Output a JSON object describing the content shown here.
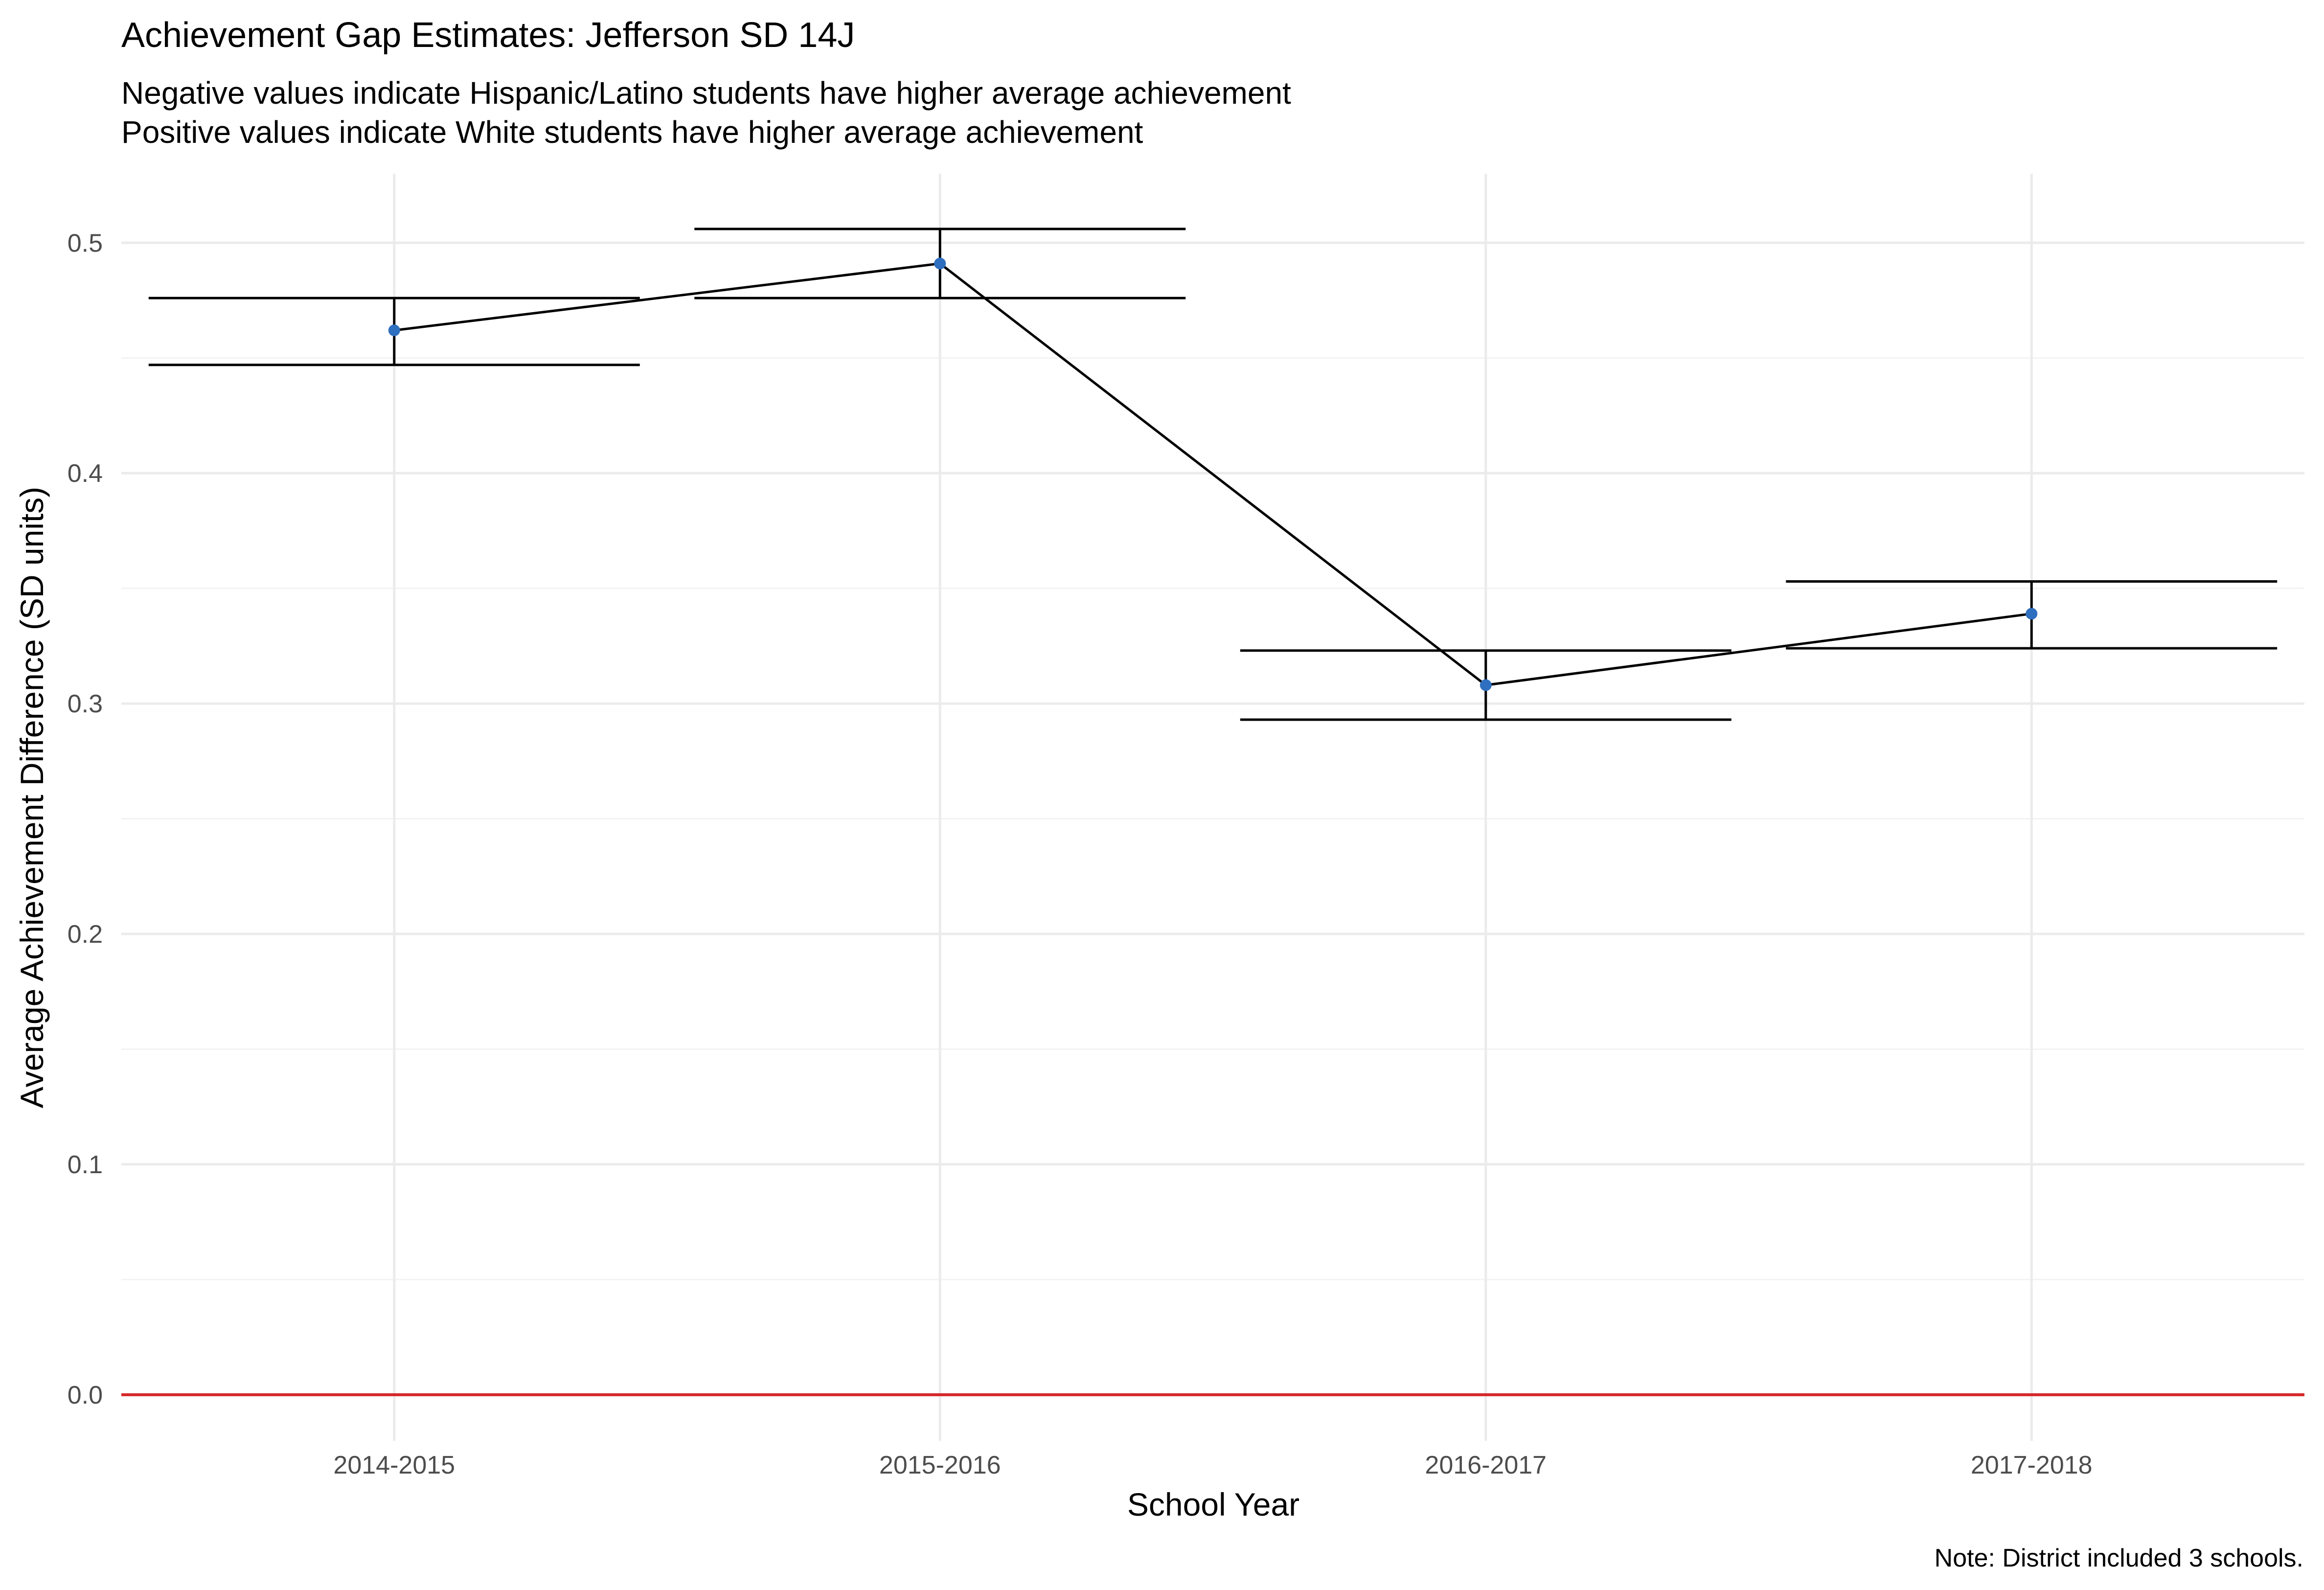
{
  "chart_data": {
    "type": "line",
    "title": "Achievement Gap Estimates: Jefferson SD 14J",
    "subtitle_lines": [
      "Negative values indicate Hispanic/Latino students have higher average achievement",
      "Positive values indicate White students have higher average achievement"
    ],
    "xlabel": "School Year",
    "ylabel": "Average Achievement Difference (SD units)",
    "caption": "Note: District included 3 schools.",
    "categories": [
      "2014-2015",
      "2015-2016",
      "2016-2017",
      "2017-2018"
    ],
    "series": [
      {
        "values": [
          0.462,
          0.491,
          0.308,
          0.339
        ],
        "lower": [
          0.447,
          0.476,
          0.293,
          0.324
        ],
        "upper": [
          0.476,
          0.506,
          0.323,
          0.353
        ]
      }
    ],
    "ylim": [
      -0.02,
      0.53
    ],
    "yticks": [
      0.0,
      0.1,
      0.2,
      0.3,
      0.4,
      0.5
    ],
    "ytick_labels": [
      "0.0",
      "0.1",
      "0.2",
      "0.3",
      "0.4",
      "0.5"
    ],
    "reference_line": {
      "y": 0.0
    },
    "grid": true,
    "legend": "none",
    "colors": {
      "point": "#2e6fbf",
      "line": "#000000",
      "errorbar": "#000000",
      "reference": "#d62728",
      "grid_major": "#ebebeb",
      "grid_minor": "#f3f3f3",
      "tick_text": "#4d4d4d"
    }
  }
}
